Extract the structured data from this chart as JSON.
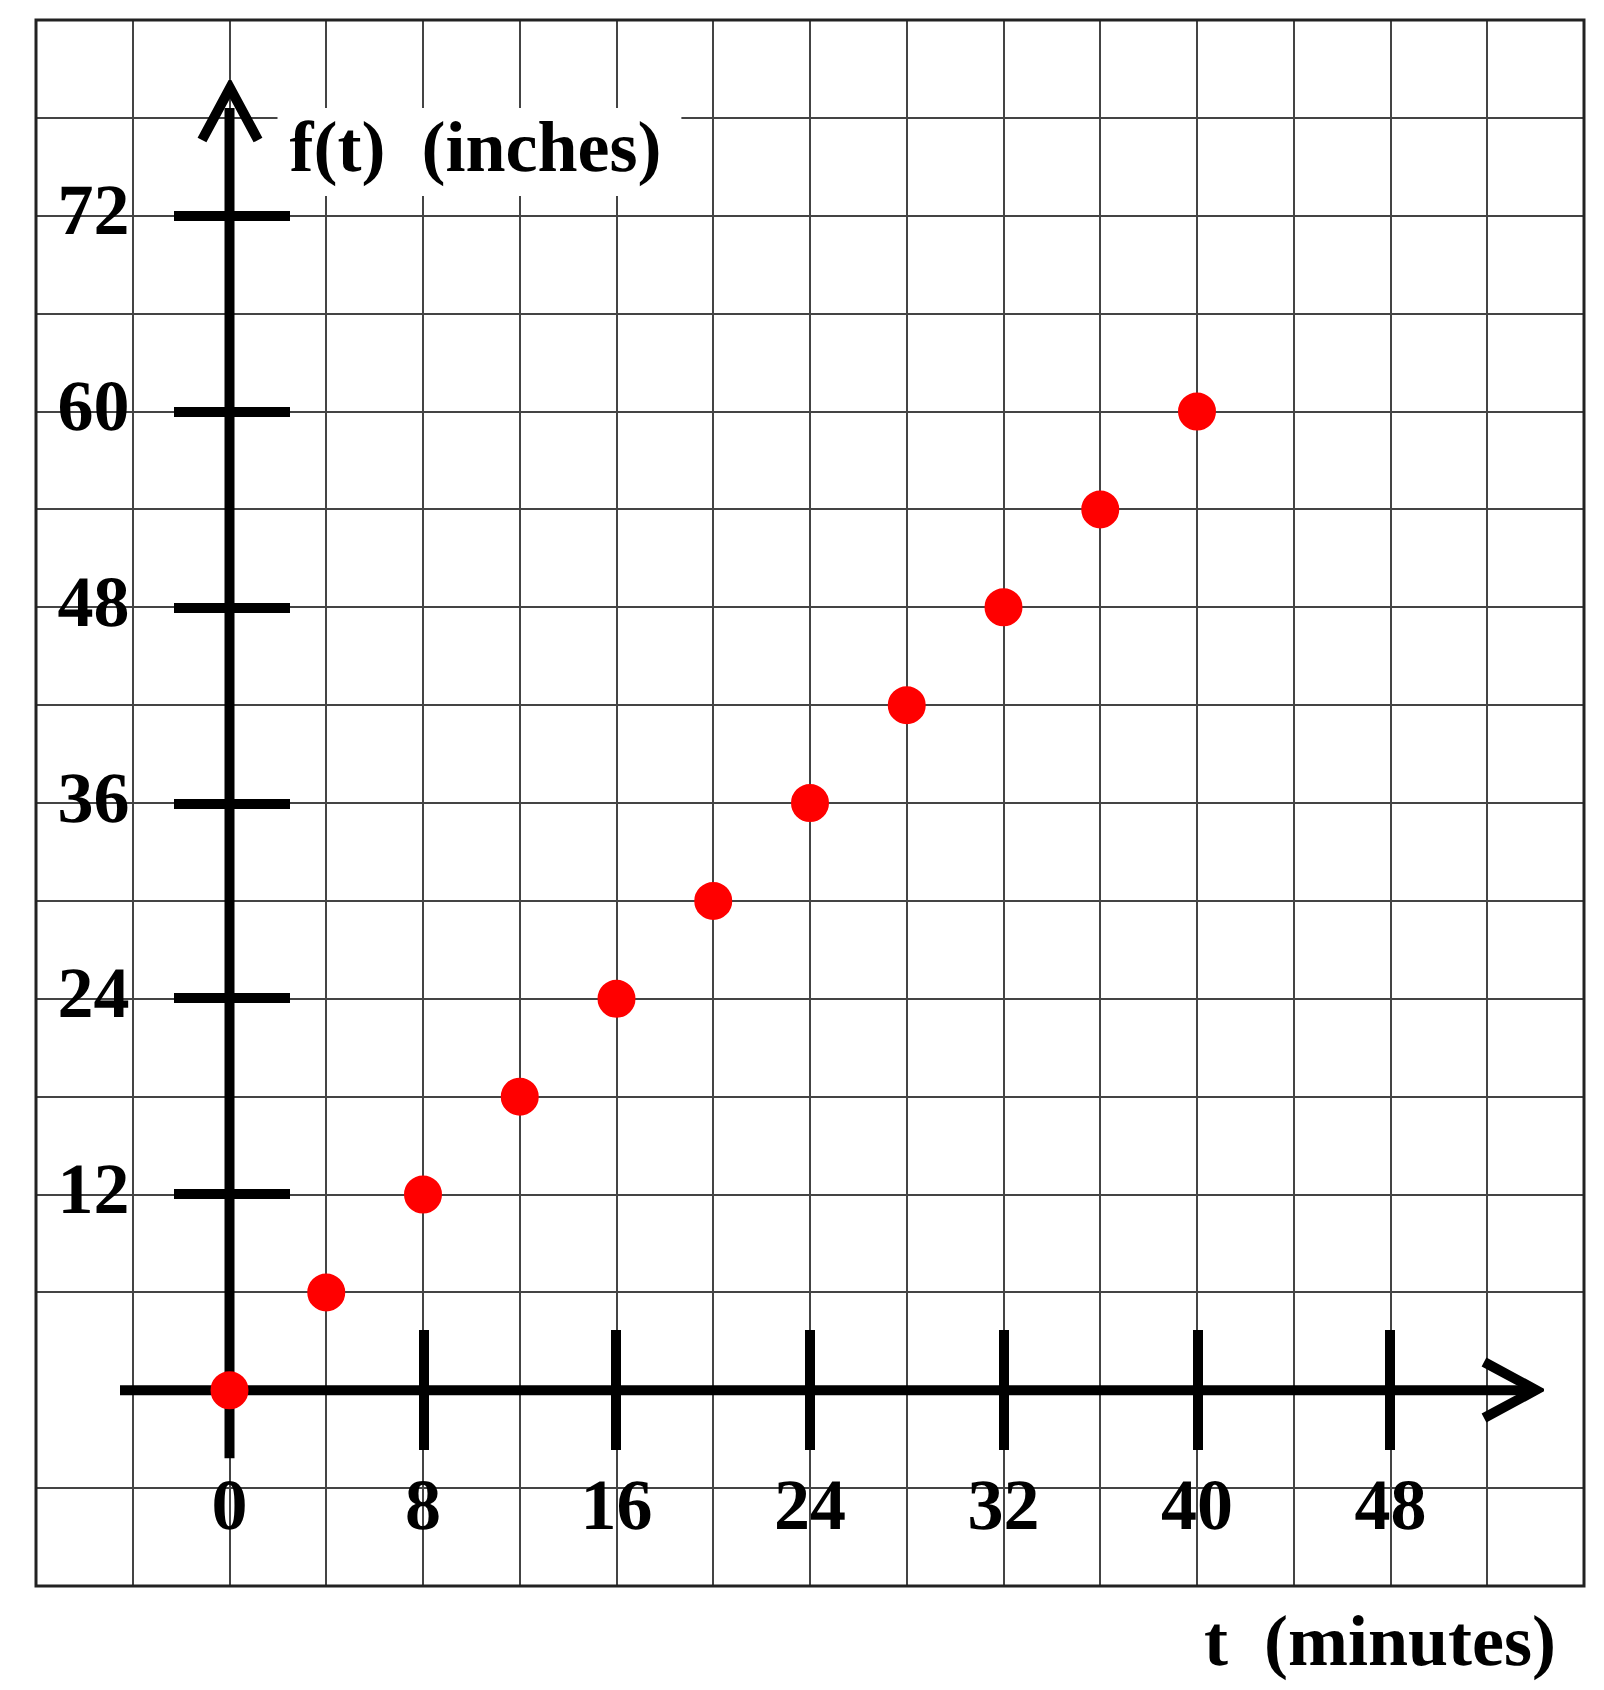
{
  "chart_data": {
    "type": "scatter",
    "xlabel": "t  (minutes)",
    "ylabel": "f(t)  (inches)",
    "x": [
      0,
      4,
      8,
      12,
      16,
      20,
      24,
      28,
      32,
      36,
      40
    ],
    "values": [
      0,
      6,
      12,
      18,
      24,
      30,
      36,
      42,
      48,
      54,
      60
    ],
    "color": "#ff0000",
    "marker": "circle",
    "xlim": [
      -8,
      56
    ],
    "ylim": [
      -12,
      84
    ],
    "xticks": [
      {
        "value": -4,
        "label": null
      },
      {
        "value": 0,
        "label": "0"
      },
      {
        "value": 4,
        "label": null
      },
      8,
      {
        "value": 12,
        "label": null
      },
      16,
      {
        "value": 20,
        "label": null
      },
      24,
      {
        "value": 28,
        "label": null
      },
      32,
      {
        "value": 36,
        "label": null
      },
      40,
      {
        "value": 44,
        "label": null
      },
      48,
      {
        "value": 52,
        "label": null
      }
    ],
    "yticks": [
      {
        "value": -6,
        "label": null
      },
      {
        "value": 6,
        "label": null
      },
      12,
      {
        "value": 18,
        "label": null
      },
      24,
      {
        "value": 30,
        "label": null
      },
      36,
      {
        "value": 42,
        "label": null
      },
      48,
      {
        "value": 54,
        "label": null
      },
      60,
      {
        "value": 66,
        "label": null
      },
      72,
      {
        "value": 78,
        "label": null
      }
    ],
    "grid": true
  }
}
